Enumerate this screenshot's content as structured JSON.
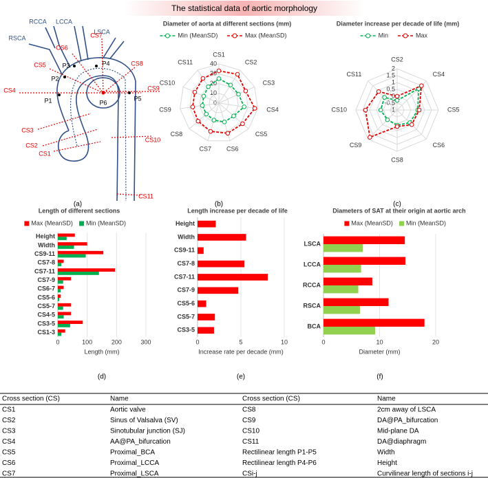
{
  "title": "The statistical data of aortic morphology",
  "diagram": {
    "label": "(a)",
    "vessels": [
      "RCCA",
      "LCCA",
      "LSCA",
      "RSCA"
    ],
    "sections": [
      "CS1",
      "CS2",
      "CS3",
      "CS4",
      "CS5",
      "CS6",
      "CS7",
      "CS8",
      "CS9",
      "CS10",
      "CS11"
    ],
    "points": [
      "P1",
      "P2",
      "P3",
      "P4",
      "P5",
      "P6"
    ]
  },
  "chart_data": [
    {
      "type": "radar",
      "label": "(b)",
      "title": "Diameter of aorta at different sections (mm)",
      "categories": [
        "CS1",
        "CS2",
        "CS3",
        "CS4",
        "CS5",
        "CS6",
        "CS7",
        "CS8",
        "CS9",
        "CS10",
        "CS11"
      ],
      "series": [
        {
          "name": "Min (MeanSD)",
          "color": "#00b050",
          "values": [
            25,
            22,
            22,
            26,
            20,
            20,
            18,
            17,
            17,
            17,
            20
          ]
        },
        {
          "name": "Max (MeanSD)",
          "color": "#e00000",
          "values": [
            33,
            35,
            30,
            37,
            32,
            32,
            30,
            28,
            27,
            27,
            30
          ]
        }
      ],
      "rlim": [
        0,
        40
      ],
      "rticks": [
        0,
        10,
        20,
        30,
        40
      ],
      "grid": true
    },
    {
      "type": "radar",
      "label": "(c)",
      "title": "Diameter increase per decade of life (mm)",
      "categories": [
        "CS2",
        "CS4",
        "CS5",
        "CS6",
        "CS8",
        "CS9",
        "CS10",
        "CS11"
      ],
      "series": [
        {
          "name": "Min",
          "color": "#00b050",
          "values": [
            -0.3,
            1.2,
            0.5,
            0.3,
            0.1,
            0,
            0.2,
            0.3
          ]
        },
        {
          "name": "Max",
          "color": "#e00000",
          "values": [
            0,
            1.5,
            0.6,
            0.5,
            0.2,
            1.8,
            1.3,
            0.9
          ]
        }
      ],
      "rlim": [
        -1,
        2
      ],
      "rticks": [
        -1,
        -0.5,
        0,
        0.5,
        1,
        1.5,
        2
      ],
      "grid": true
    },
    {
      "type": "barh",
      "label": "(d)",
      "title": "Length of different sections",
      "xlabel": "Length (mm)",
      "categories": [
        "Height",
        "Width",
        "CS9-11",
        "CS7-8",
        "CS7-11",
        "CS7-9",
        "CS6-7",
        "CS5-6",
        "CS5-7",
        "CS4-5",
        "CS3-5",
        "CS1-3"
      ],
      "series": [
        {
          "name": "Max (MeanSD)",
          "color": "#ff0000",
          "values": [
            58,
            100,
            155,
            20,
            195,
            45,
            20,
            10,
            45,
            45,
            85,
            25
          ]
        },
        {
          "name": "Min (MeanSD)",
          "color": "#00b050",
          "values": [
            30,
            55,
            95,
            12,
            140,
            18,
            10,
            5,
            18,
            20,
            42,
            12
          ]
        }
      ],
      "xlim": [
        0,
        300
      ],
      "xticks": [
        0,
        100,
        200,
        300
      ],
      "grid": true
    },
    {
      "type": "barh",
      "label": "(e)",
      "title": "Length increase per decade of life",
      "xlabel": "Increase rate per decade (mm)",
      "categories": [
        "Height",
        "Width",
        "CS9-11",
        "CS7-8",
        "CS7-11",
        "CS7-9",
        "CS5-6",
        "CS5-7",
        "CS3-5"
      ],
      "values": [
        2.1,
        5.6,
        0.7,
        5.4,
        8.1,
        4.7,
        1.0,
        2.0,
        1.9
      ],
      "color": "#ff0000",
      "xlim": [
        0,
        10
      ],
      "xticks": [
        0,
        5,
        10
      ],
      "grid": true
    },
    {
      "type": "barh",
      "label": "(f)",
      "title": "Diameters of SAT at their origin at aortic arch",
      "xlabel": "Diameter (mm)",
      "categories": [
        "LSCA",
        "LCCA",
        "RCCA",
        "RSCA",
        "BCA"
      ],
      "series": [
        {
          "name": "Max (MeanSD)",
          "color": "#ff0000",
          "values": [
            14.5,
            14.6,
            8.7,
            11.6,
            18
          ]
        },
        {
          "name": "Min (MeanSD)",
          "color": "#92d050",
          "values": [
            7,
            6.7,
            6.2,
            6.5,
            9.2
          ]
        }
      ],
      "xlim": [
        0,
        20
      ],
      "xticks": [
        0,
        10,
        20
      ],
      "grid": true
    }
  ],
  "table": {
    "header": [
      "Cross section (CS)",
      "Name",
      "Cross section (CS)",
      "Name"
    ],
    "rows": [
      [
        "CS1",
        "Aortic valve",
        "CS8",
        "2cm away of LSCA"
      ],
      [
        "CS2",
        "Sinus of Valsalva (SV)",
        "CS9",
        "DA@PA_bifurcation"
      ],
      [
        "CS3",
        "Sinotubular junction (SJ)",
        "CS10",
        "Mid-plane DA"
      ],
      [
        "CS4",
        "AA@PA_bifurcation",
        "CS11",
        "DA@diaphragm"
      ],
      [
        "CS5",
        "Proximal_BCA",
        "Rectilinear length P1-P5",
        "Width"
      ],
      [
        "CS6",
        "Proximal_LCCA",
        "Rectilinear length P4-P6",
        "Height"
      ],
      [
        "CS7",
        "Proximal_LSCA",
        "CSi-j",
        "Curvilinear length of sections i-j"
      ]
    ]
  }
}
